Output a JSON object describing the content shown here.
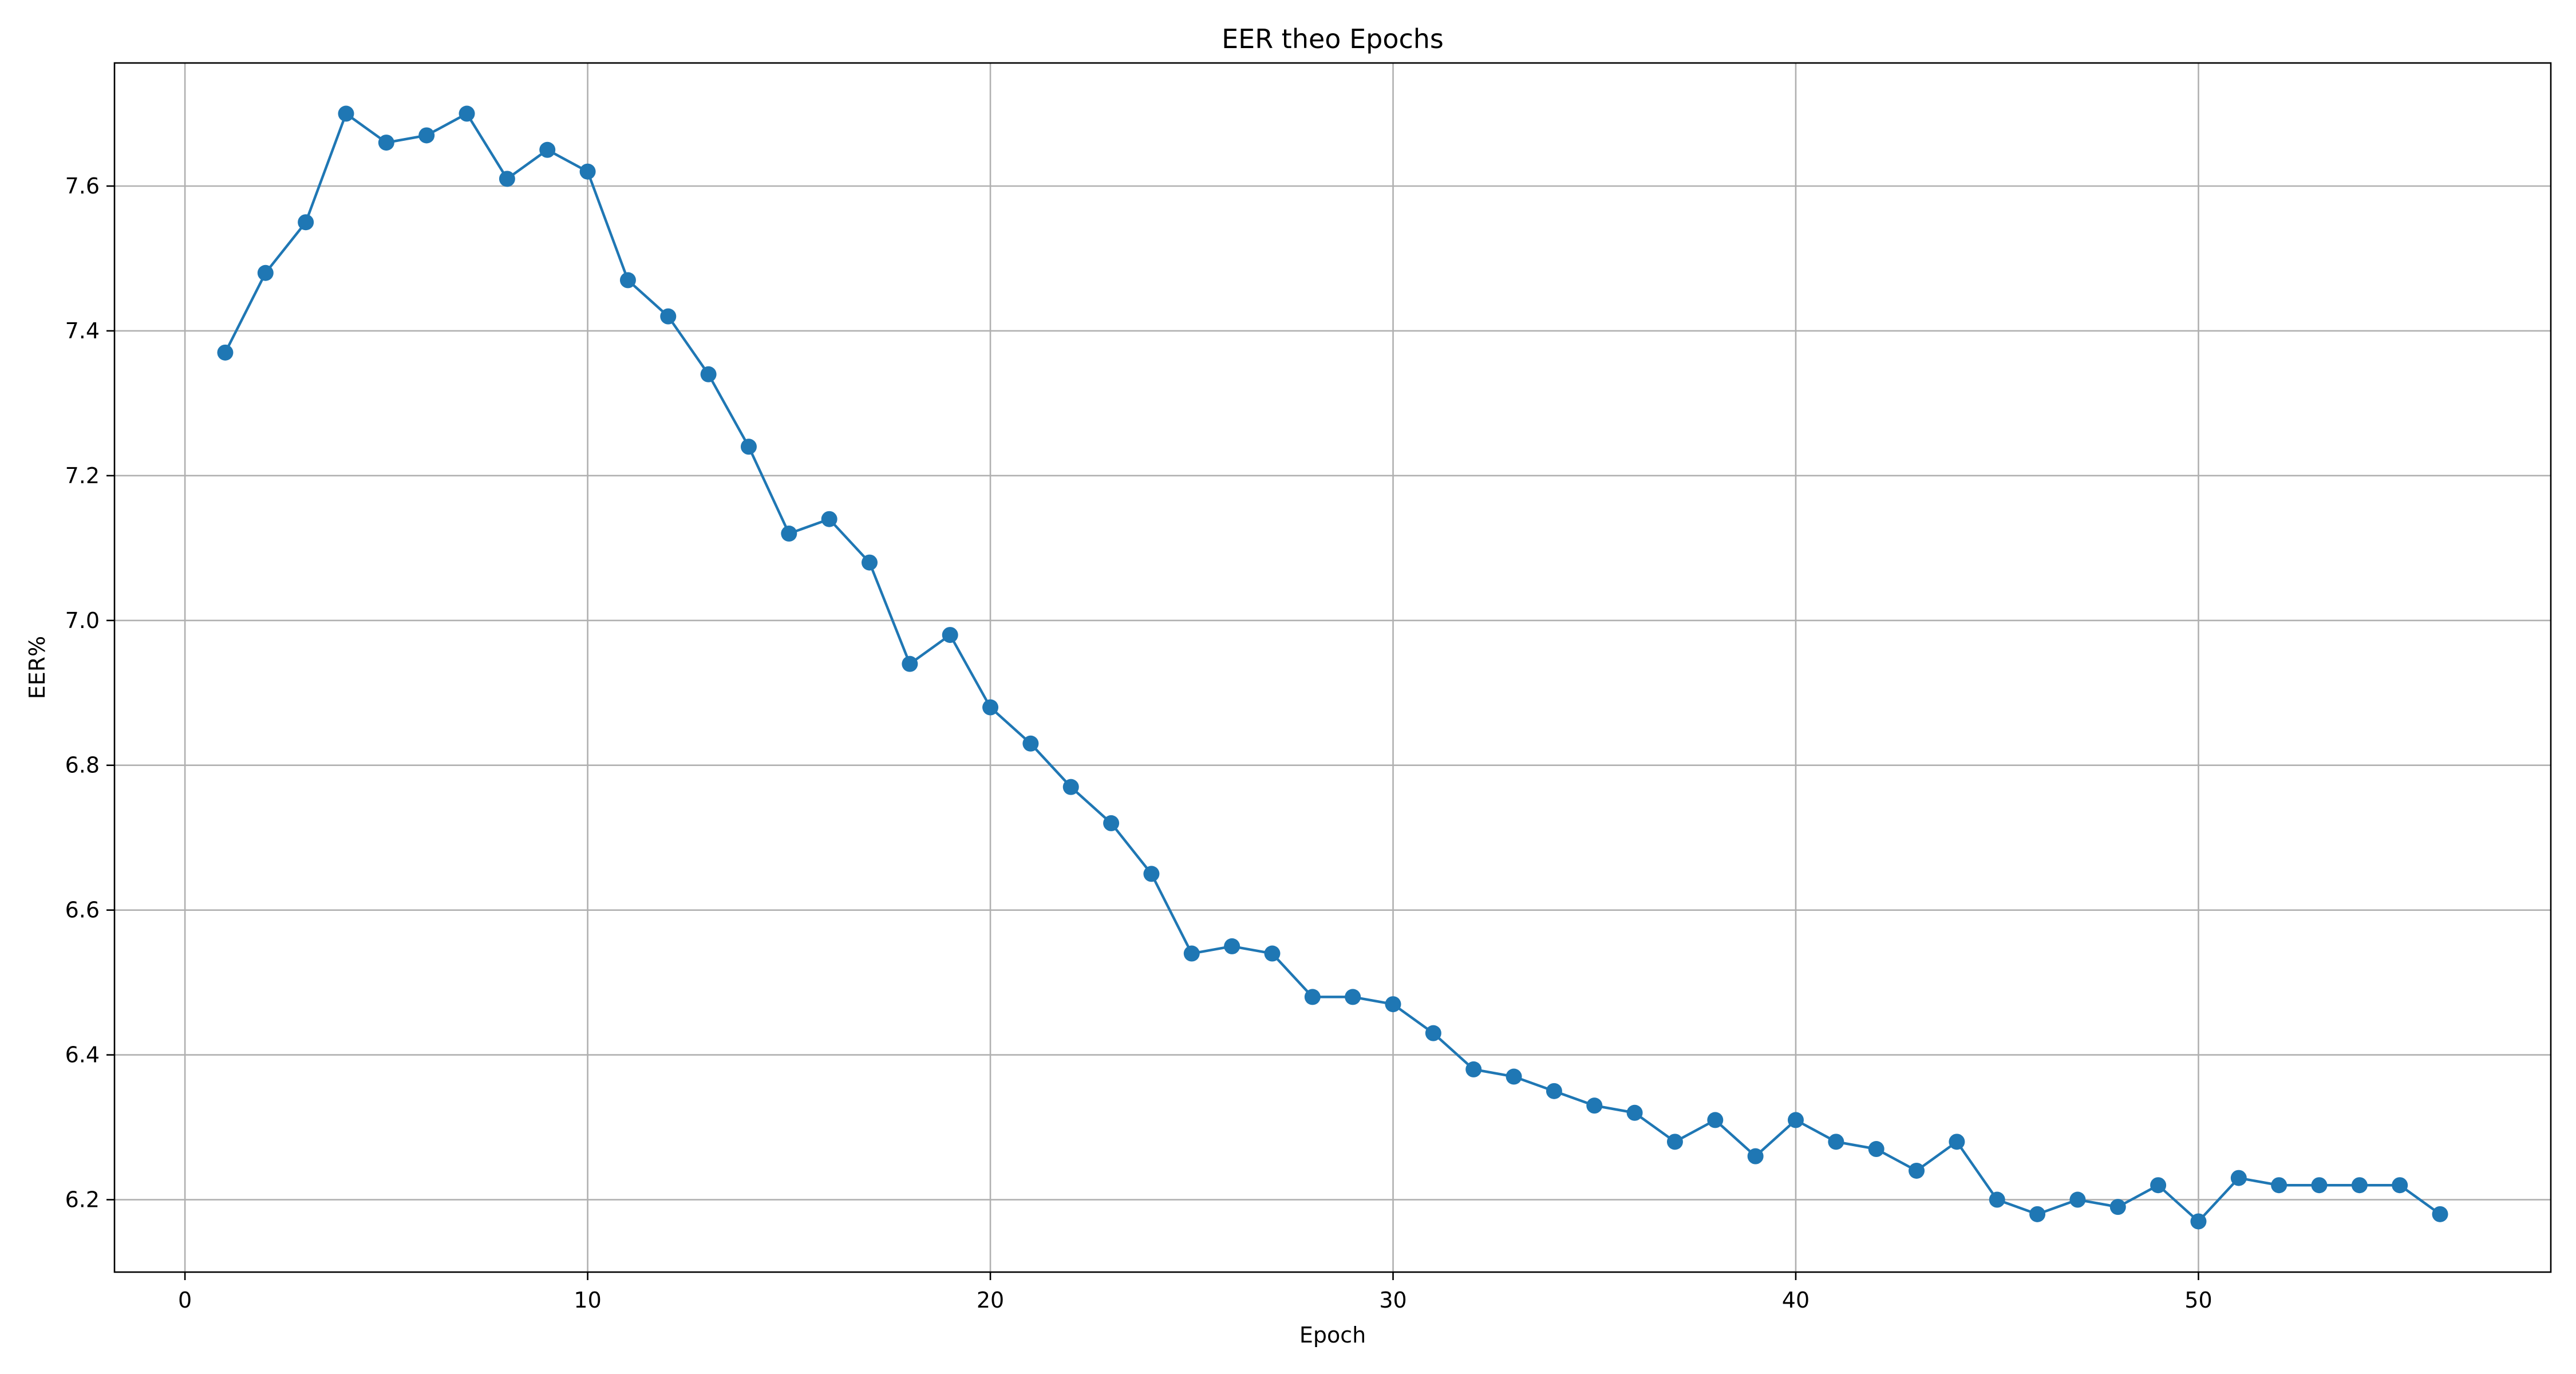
{
  "chart_data": {
    "type": "line",
    "title": "EER theo Epochs",
    "xlabel": "Epoch",
    "ylabel": "EER%",
    "xlim": [
      -1.75,
      58.75
    ],
    "ylim": [
      6.1,
      7.77
    ],
    "xticks": [
      0,
      10,
      20,
      30,
      40,
      50
    ],
    "yticks": [
      6.2,
      6.4,
      6.6,
      6.8,
      7.0,
      7.2,
      7.4,
      7.6
    ],
    "grid": true,
    "marker": "circle",
    "line_color": "#1f77b4",
    "series": [
      {
        "x": [
          1,
          2,
          3,
          4,
          5,
          6,
          7,
          8,
          9,
          10,
          11,
          12,
          13,
          14,
          15,
          16,
          17,
          18,
          19,
          20,
          21,
          22,
          23,
          24,
          25,
          26,
          27,
          28,
          29,
          30,
          31,
          32,
          33,
          34,
          35,
          36,
          37,
          38,
          39,
          40,
          41,
          42,
          43,
          44,
          45,
          46,
          47,
          48,
          49,
          50,
          51,
          52,
          53,
          54,
          55,
          56
        ],
        "values": [
          7.37,
          7.48,
          7.55,
          7.7,
          7.66,
          7.67,
          7.7,
          7.61,
          7.65,
          7.62,
          7.47,
          7.42,
          7.34,
          7.24,
          7.12,
          7.14,
          7.08,
          6.94,
          6.98,
          6.88,
          6.83,
          6.77,
          6.72,
          6.65,
          6.54,
          6.55,
          6.54,
          6.48,
          6.48,
          6.47,
          6.43,
          6.38,
          6.37,
          6.35,
          6.33,
          6.32,
          6.28,
          6.31,
          6.26,
          6.31,
          6.28,
          6.27,
          6.24,
          6.28,
          6.2,
          6.18,
          6.2,
          6.19,
          6.22,
          6.17,
          6.23,
          6.22,
          6.22,
          6.22,
          6.22,
          6.18
        ]
      }
    ]
  }
}
